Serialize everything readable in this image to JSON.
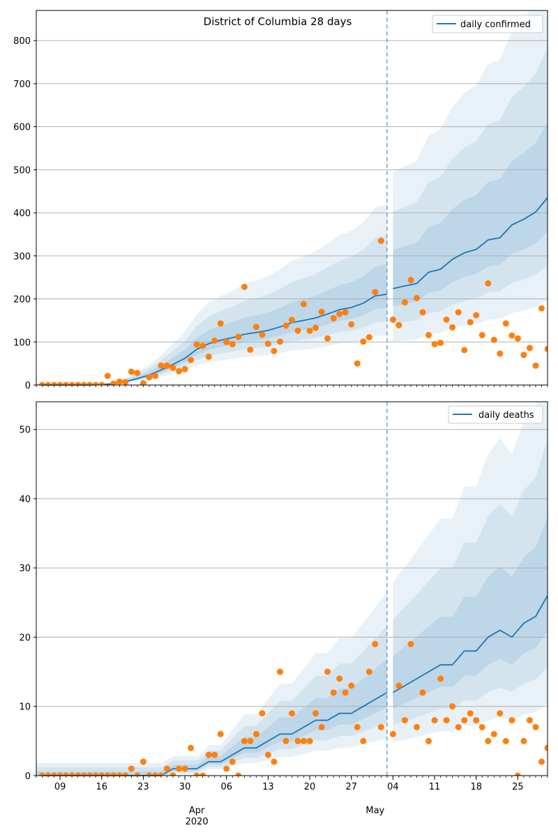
{
  "chart_data": [
    {
      "type": "line",
      "title": "District of Columbia 28 days",
      "xlabel": "",
      "ylabel": "",
      "ylim": [
        0,
        870
      ],
      "yticks": [
        0,
        100,
        200,
        300,
        400,
        500,
        600,
        700,
        800
      ],
      "grid": "horizontal",
      "legend": {
        "entries": [
          "daily confirmed"
        ],
        "placement": "top-right"
      },
      "forecast_start": "2020-05-03",
      "colors": {
        "line": "#1f77b4",
        "points": "#ff7f0e",
        "band": "#1f77b4"
      },
      "observed": {
        "x": [
          "2020-03-06",
          "2020-03-07",
          "2020-03-08",
          "2020-03-09",
          "2020-03-10",
          "2020-03-11",
          "2020-03-12",
          "2020-03-13",
          "2020-03-14",
          "2020-03-15",
          "2020-03-16",
          "2020-03-17",
          "2020-03-18",
          "2020-03-19",
          "2020-03-20",
          "2020-03-21",
          "2020-03-22",
          "2020-03-23",
          "2020-03-24",
          "2020-03-25",
          "2020-03-26",
          "2020-03-27",
          "2020-03-28",
          "2020-03-29",
          "2020-03-30",
          "2020-03-31",
          "2020-04-01",
          "2020-04-02",
          "2020-04-03",
          "2020-04-04",
          "2020-04-05",
          "2020-04-06",
          "2020-04-07",
          "2020-04-08",
          "2020-04-09",
          "2020-04-10",
          "2020-04-11",
          "2020-04-12",
          "2020-04-13",
          "2020-04-14",
          "2020-04-15",
          "2020-04-16",
          "2020-04-17",
          "2020-04-18",
          "2020-04-19",
          "2020-04-20",
          "2020-04-21",
          "2020-04-22",
          "2020-04-23",
          "2020-04-24",
          "2020-04-25",
          "2020-04-26",
          "2020-04-27",
          "2020-04-28",
          "2020-04-29",
          "2020-04-30",
          "2020-05-01",
          "2020-05-02",
          "2020-05-03",
          "2020-05-04",
          "2020-05-05",
          "2020-05-06",
          "2020-05-07",
          "2020-05-08",
          "2020-05-09",
          "2020-05-10",
          "2020-05-11",
          "2020-05-12",
          "2020-05-13",
          "2020-05-14",
          "2020-05-15",
          "2020-05-16",
          "2020-05-17",
          "2020-05-18",
          "2020-05-19",
          "2020-05-20",
          "2020-05-21",
          "2020-05-22",
          "2020-05-23",
          "2020-05-24",
          "2020-05-25",
          "2020-05-26",
          "2020-05-27",
          "2020-05-28",
          "2020-05-29",
          "2020-05-30"
        ],
        "values": [
          0,
          0,
          0,
          0,
          0,
          0,
          0,
          0,
          0,
          0,
          0,
          21,
          3,
          8,
          7,
          31,
          28,
          4,
          18,
          21,
          45,
          45,
          40,
          32,
          37,
          58,
          94,
          91,
          66,
          103,
          143,
          100,
          95,
          112,
          228,
          82,
          135,
          117,
          96,
          79,
          101,
          138,
          151,
          126,
          188,
          126,
          133,
          170,
          108,
          155,
          165,
          169,
          141,
          50,
          101,
          111,
          216,
          335,
          null,
          152,
          139,
          192,
          244,
          202,
          169,
          116,
          95,
          98,
          152,
          134,
          169,
          81,
          146,
          162,
          116,
          236,
          105,
          73,
          143,
          115,
          108,
          70,
          86,
          45,
          178,
          84
        ]
      },
      "fit": {
        "x": [
          "2020-03-06",
          "2020-03-08",
          "2020-03-10",
          "2020-03-12",
          "2020-03-14",
          "2020-03-16",
          "2020-03-18",
          "2020-03-20",
          "2020-03-22",
          "2020-03-24",
          "2020-03-26",
          "2020-03-28",
          "2020-03-30",
          "2020-04-01",
          "2020-04-03",
          "2020-04-05",
          "2020-04-07",
          "2020-04-09",
          "2020-04-11",
          "2020-04-13",
          "2020-04-15",
          "2020-04-17",
          "2020-04-19",
          "2020-04-21",
          "2020-04-23",
          "2020-04-25",
          "2020-04-27",
          "2020-04-29",
          "2020-05-01",
          "2020-05-03"
        ],
        "values": [
          0,
          0,
          0,
          0,
          0,
          1,
          3,
          8,
          15,
          23,
          35,
          48,
          62,
          83,
          96,
          104,
          110,
          118,
          122,
          127,
          135,
          145,
          150,
          156,
          165,
          175,
          180,
          190,
          207,
          211
        ]
      },
      "forecast": {
        "x": [
          "2020-05-04",
          "2020-05-06",
          "2020-05-08",
          "2020-05-10",
          "2020-05-12",
          "2020-05-14",
          "2020-05-16",
          "2020-05-18",
          "2020-05-20",
          "2020-05-22",
          "2020-05-24",
          "2020-05-26",
          "2020-05-28",
          "2020-05-30"
        ],
        "values": [
          224,
          230,
          236,
          262,
          269,
          292,
          307,
          315,
          337,
          342,
          372,
          385,
          402,
          435
        ]
      }
    },
    {
      "type": "line",
      "title": "",
      "xlabel": "",
      "ylabel": "",
      "ylim": [
        0,
        54
      ],
      "yticks": [
        0,
        10,
        20,
        30,
        40,
        50
      ],
      "grid": "horizontal",
      "legend": {
        "entries": [
          "daily deaths"
        ],
        "placement": "top-right"
      },
      "forecast_start": "2020-05-03",
      "observed": {
        "x": [
          "2020-03-06",
          "2020-03-07",
          "2020-03-08",
          "2020-03-09",
          "2020-03-10",
          "2020-03-11",
          "2020-03-12",
          "2020-03-13",
          "2020-03-14",
          "2020-03-15",
          "2020-03-16",
          "2020-03-17",
          "2020-03-18",
          "2020-03-19",
          "2020-03-20",
          "2020-03-21",
          "2020-03-22",
          "2020-03-23",
          "2020-03-24",
          "2020-03-25",
          "2020-03-26",
          "2020-03-27",
          "2020-03-28",
          "2020-03-29",
          "2020-03-30",
          "2020-03-31",
          "2020-04-01",
          "2020-04-02",
          "2020-04-03",
          "2020-04-04",
          "2020-04-05",
          "2020-04-06",
          "2020-04-07",
          "2020-04-08",
          "2020-04-09",
          "2020-04-10",
          "2020-04-11",
          "2020-04-12",
          "2020-04-13",
          "2020-04-14",
          "2020-04-15",
          "2020-04-16",
          "2020-04-17",
          "2020-04-18",
          "2020-04-19",
          "2020-04-20",
          "2020-04-21",
          "2020-04-22",
          "2020-04-23",
          "2020-04-24",
          "2020-04-25",
          "2020-04-26",
          "2020-04-27",
          "2020-04-28",
          "2020-04-29",
          "2020-04-30",
          "2020-05-01",
          "2020-05-02",
          "2020-05-03",
          "2020-05-04",
          "2020-05-05",
          "2020-05-06",
          "2020-05-07",
          "2020-05-08",
          "2020-05-09",
          "2020-05-10",
          "2020-05-11",
          "2020-05-12",
          "2020-05-13",
          "2020-05-14",
          "2020-05-15",
          "2020-05-16",
          "2020-05-17",
          "2020-05-18",
          "2020-05-19",
          "2020-05-20",
          "2020-05-21",
          "2020-05-22",
          "2020-05-23",
          "2020-05-24",
          "2020-05-25",
          "2020-05-26",
          "2020-05-27",
          "2020-05-28",
          "2020-05-29",
          "2020-05-30"
        ],
        "values": [
          0,
          0,
          0,
          0,
          0,
          0,
          0,
          0,
          0,
          0,
          0,
          0,
          0,
          0,
          0,
          1,
          0,
          2,
          0,
          0,
          0,
          1,
          0,
          1,
          1,
          4,
          0,
          0,
          3,
          3,
          6,
          1,
          2,
          0,
          5,
          5,
          6,
          9,
          3,
          2,
          15,
          5,
          9,
          5,
          5,
          5,
          9,
          7,
          15,
          12,
          14,
          12,
          13,
          7,
          5,
          15,
          19,
          7,
          null,
          6,
          13,
          8,
          19,
          7,
          12,
          5,
          8,
          14,
          8,
          10,
          7,
          8,
          9,
          8,
          7,
          5,
          6,
          9,
          5,
          8,
          0,
          5,
          8,
          7,
          2,
          4
        ]
      },
      "fit": {
        "x": [
          "2020-03-06",
          "2020-03-10",
          "2020-03-14",
          "2020-03-18",
          "2020-03-22",
          "2020-03-26",
          "2020-03-28",
          "2020-03-30",
          "2020-04-01",
          "2020-04-03",
          "2020-04-05",
          "2020-04-07",
          "2020-04-09",
          "2020-04-11",
          "2020-04-13",
          "2020-04-15",
          "2020-04-17",
          "2020-04-19",
          "2020-04-21",
          "2020-04-23",
          "2020-04-25",
          "2020-04-27",
          "2020-04-29",
          "2020-05-01",
          "2020-05-03"
        ],
        "values": [
          0,
          0,
          0,
          0,
          0,
          0,
          1,
          1,
          1,
          2,
          2,
          3,
          4,
          4,
          5,
          6,
          6,
          7,
          8,
          8,
          9,
          9,
          10,
          11,
          12
        ]
      },
      "forecast": {
        "x": [
          "2020-05-04",
          "2020-05-06",
          "2020-05-08",
          "2020-05-10",
          "2020-05-12",
          "2020-05-14",
          "2020-05-16",
          "2020-05-18",
          "2020-05-20",
          "2020-05-22",
          "2020-05-24",
          "2020-05-26",
          "2020-05-28",
          "2020-05-30"
        ],
        "values": [
          12,
          13,
          14,
          15,
          16,
          16,
          18,
          18,
          20,
          21,
          20,
          22,
          23,
          26
        ]
      }
    }
  ],
  "xaxis": {
    "minor_ticks": [
      "09",
      "16",
      "23",
      "30",
      "06",
      "13",
      "20",
      "27",
      "04",
      "11",
      "18",
      "25"
    ],
    "major_ticks": [
      "Apr",
      "May"
    ],
    "year_label": "2020"
  }
}
